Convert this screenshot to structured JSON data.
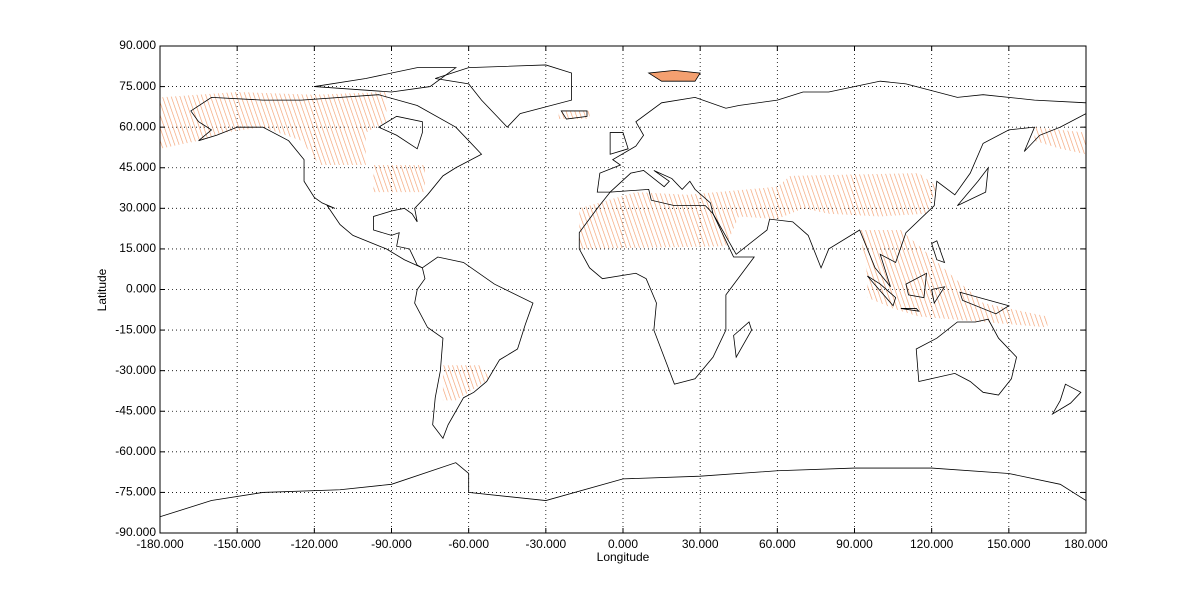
{
  "chart_data": {
    "type": "map",
    "x_label": "Longitude",
    "y_label": "Latitude",
    "xlim": [
      -180,
      180
    ],
    "ylim": [
      -90,
      90
    ],
    "grid": true,
    "xticks": [
      {
        "value": -180,
        "label": "-180.000"
      },
      {
        "value": -150,
        "label": "-150.000"
      },
      {
        "value": -120,
        "label": "-120.000"
      },
      {
        "value": -90,
        "label": "-90.000"
      },
      {
        "value": -60,
        "label": "-60.000"
      },
      {
        "value": -30,
        "label": "-30.000"
      },
      {
        "value": 0,
        "label": "0.000"
      },
      {
        "value": 30,
        "label": "30.000"
      },
      {
        "value": 60,
        "label": "60.000"
      },
      {
        "value": 90,
        "label": "90.000"
      },
      {
        "value": 120,
        "label": "120.000"
      },
      {
        "value": 150,
        "label": "150.000"
      },
      {
        "value": 180,
        "label": "180.000"
      }
    ],
    "yticks": [
      {
        "value": -90,
        "label": "-90.000"
      },
      {
        "value": -75,
        "label": "-75.000"
      },
      {
        "value": -60,
        "label": "-60.000"
      },
      {
        "value": -45,
        "label": "-45.000"
      },
      {
        "value": -30,
        "label": "-30.000"
      },
      {
        "value": -15,
        "label": "-15.000"
      },
      {
        "value": 0,
        "label": "0.000"
      },
      {
        "value": 15,
        "label": "15.000"
      },
      {
        "value": 30,
        "label": "30.000"
      },
      {
        "value": 45,
        "label": "45.000"
      },
      {
        "value": 60,
        "label": "60.000"
      },
      {
        "value": 75,
        "label": "75.000"
      },
      {
        "value": 90,
        "label": "90.000"
      }
    ]
  }
}
